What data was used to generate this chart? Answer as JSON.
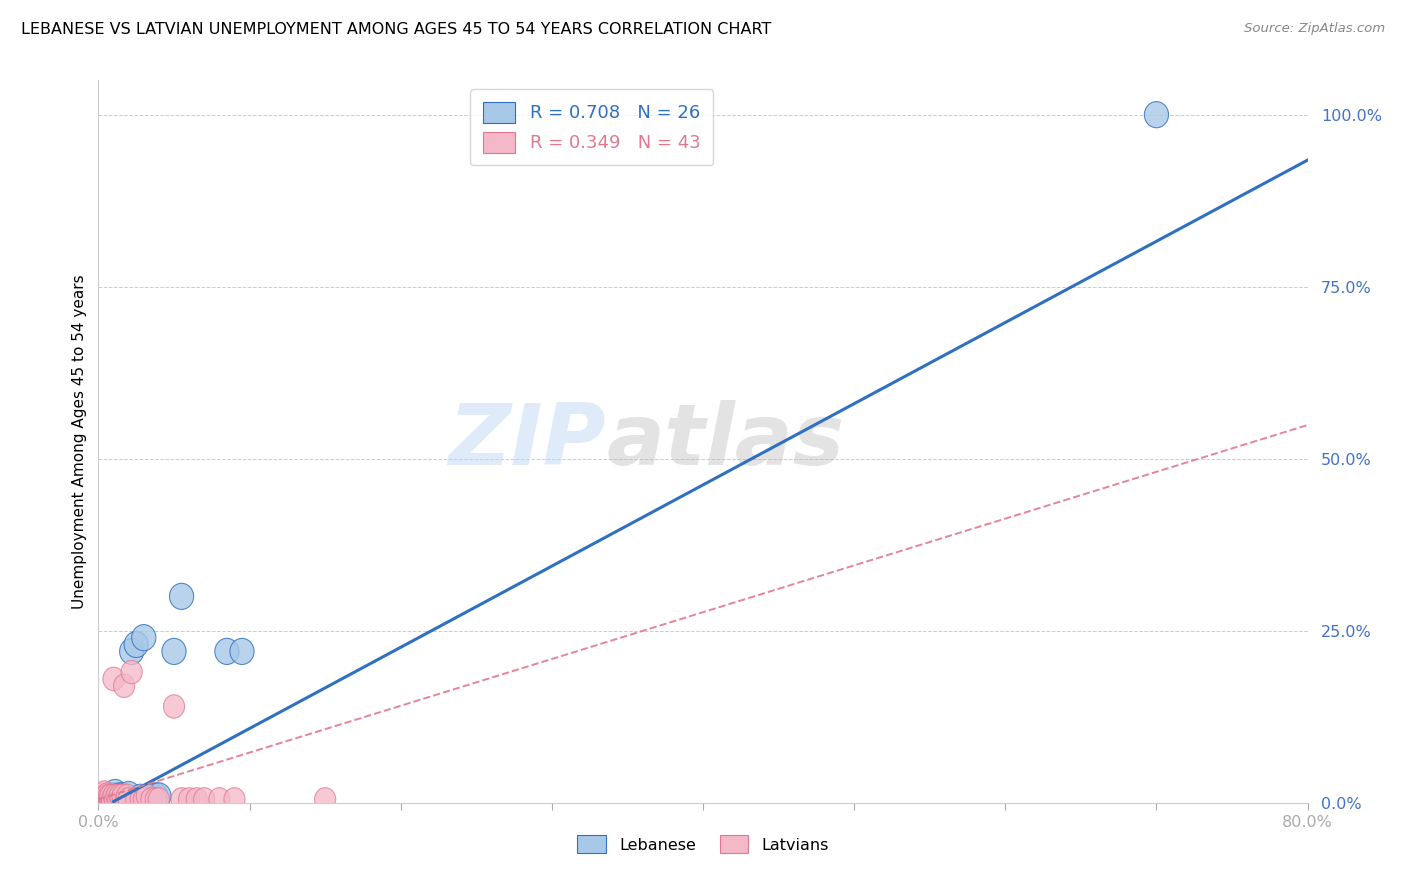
{
  "title": "LEBANESE VS LATVIAN UNEMPLOYMENT AMONG AGES 45 TO 54 YEARS CORRELATION CHART",
  "source": "Source: ZipAtlas.com",
  "ylabel": "Unemployment Among Ages 45 to 54 years",
  "xlim": [
    0.0,
    0.8
  ],
  "ylim": [
    0.0,
    1.05
  ],
  "xticks": [
    0.0,
    0.1,
    0.2,
    0.3,
    0.4,
    0.5,
    0.6,
    0.7,
    0.8
  ],
  "yticks": [
    0.0,
    0.25,
    0.5,
    0.75,
    1.0
  ],
  "ytick_labels": [
    "0.0%",
    "25.0%",
    "50.0%",
    "75.0%",
    "100.0%"
  ],
  "xtick_labels": [
    "0.0%",
    "",
    "",
    "",
    "",
    "",
    "",
    "",
    "80.0%"
  ],
  "legend_blue_R": "R = 0.708",
  "legend_blue_N": "N = 26",
  "legend_pink_R": "R = 0.349",
  "legend_pink_N": "N = 43",
  "watermark_zip": "ZIP",
  "watermark_atlas": "atlas",
  "blue_color": "#a8c8e8",
  "pink_color": "#f4b8c8",
  "line_blue": "#3070c0",
  "line_pink": "#e07890",
  "blue_scatter_x": [
    0.003,
    0.005,
    0.006,
    0.007,
    0.008,
    0.009,
    0.01,
    0.011,
    0.012,
    0.014,
    0.015,
    0.016,
    0.018,
    0.02,
    0.022,
    0.025,
    0.028,
    0.03,
    0.035,
    0.038,
    0.04,
    0.05,
    0.055,
    0.085,
    0.095,
    0.7
  ],
  "blue_scatter_y": [
    0.005,
    0.008,
    0.006,
    0.01,
    0.005,
    0.008,
    0.01,
    0.015,
    0.008,
    0.01,
    0.005,
    0.01,
    0.008,
    0.012,
    0.22,
    0.23,
    0.008,
    0.24,
    0.01,
    0.01,
    0.01,
    0.22,
    0.3,
    0.22,
    0.22,
    1.0
  ],
  "pink_scatter_x": [
    0.001,
    0.002,
    0.003,
    0.003,
    0.004,
    0.004,
    0.005,
    0.005,
    0.006,
    0.006,
    0.007,
    0.007,
    0.008,
    0.008,
    0.009,
    0.01,
    0.01,
    0.011,
    0.012,
    0.013,
    0.014,
    0.015,
    0.016,
    0.017,
    0.018,
    0.019,
    0.02,
    0.022,
    0.025,
    0.028,
    0.03,
    0.032,
    0.035,
    0.038,
    0.04,
    0.05,
    0.055,
    0.06,
    0.065,
    0.07,
    0.08,
    0.09,
    0.15
  ],
  "pink_scatter_y": [
    0.005,
    0.008,
    0.005,
    0.012,
    0.008,
    0.015,
    0.005,
    0.01,
    0.008,
    0.012,
    0.005,
    0.01,
    0.005,
    0.01,
    0.005,
    0.01,
    0.18,
    0.005,
    0.01,
    0.005,
    0.01,
    0.005,
    0.01,
    0.17,
    0.005,
    0.01,
    0.005,
    0.19,
    0.005,
    0.005,
    0.005,
    0.01,
    0.005,
    0.005,
    0.005,
    0.14,
    0.005,
    0.005,
    0.005,
    0.005,
    0.005,
    0.005,
    0.005
  ],
  "blue_line_slope": 1.18,
  "blue_line_intercept": -0.01,
  "pink_line_slope": 0.68,
  "pink_line_intercept": 0.005,
  "blue_line_x0": 0.01,
  "blue_line_x1": 0.8,
  "pink_line_x0": 0.0,
  "pink_line_x1": 0.8
}
